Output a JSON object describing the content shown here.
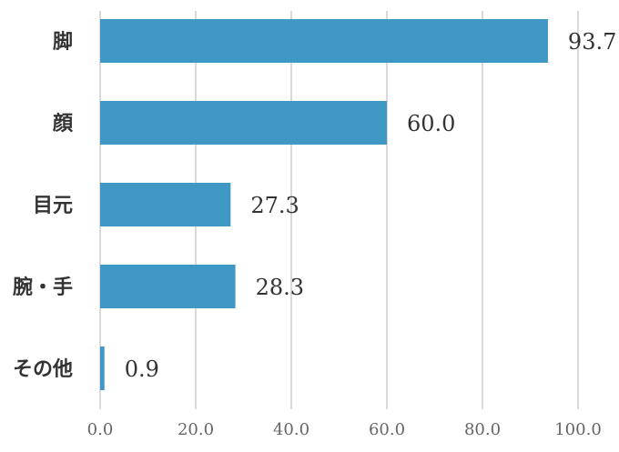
{
  "chart_data": {
    "type": "bar",
    "orientation": "horizontal",
    "categories": [
      "脚",
      "顔",
      "目元",
      "腕・手",
      "その他"
    ],
    "values": [
      93.7,
      60.0,
      27.3,
      28.3,
      0.9
    ],
    "value_labels": [
      "93.7",
      "60.0",
      "27.3",
      "28.3",
      "0.9"
    ],
    "xlim": [
      0,
      100
    ],
    "xticks": [
      "0.0",
      "20.0",
      "40.0",
      "60.0",
      "80.0",
      "100.0"
    ],
    "title": "",
    "xlabel": "",
    "ylabel": "",
    "grid": "vertical",
    "legend": "none",
    "bar_color": "#3f97c4"
  }
}
